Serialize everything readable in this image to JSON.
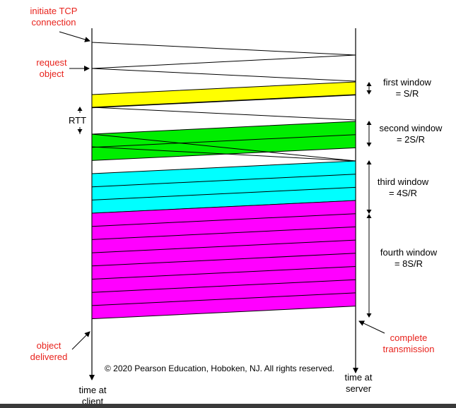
{
  "labels": {
    "initiate_tcp_line1": "initiate TCP",
    "initiate_tcp_line2": "connection",
    "request_line1": "request",
    "request_line2": "object",
    "rtt": "RTT",
    "object_delivered_line1": "object",
    "object_delivered_line2": "delivered",
    "complete_line1": "complete",
    "complete_line2": "transmission",
    "client_line1": "time at",
    "client_line2": "client",
    "server_line1": "time at",
    "server_line2": "server",
    "copyright": "© 2020 Pearson Education, Hoboken, NJ. All rights reserved."
  },
  "windows": [
    {
      "label_line1": "first window",
      "label_line2": "= S/R",
      "segments": 1,
      "color": "#ffff00"
    },
    {
      "label_line1": "second window",
      "label_line2": "= 2S/R",
      "segments": 2,
      "color": "#00ee00"
    },
    {
      "label_line1": "third window",
      "label_line2": "= 4S/R",
      "segments": 4,
      "color": "#00ffff"
    },
    {
      "label_line1": "fourth window",
      "label_line2": "= 8S/R",
      "segments": 8,
      "color": "#ff00ff"
    }
  ],
  "colors": {
    "label_red": "#e8231d",
    "line": "#000000"
  }
}
